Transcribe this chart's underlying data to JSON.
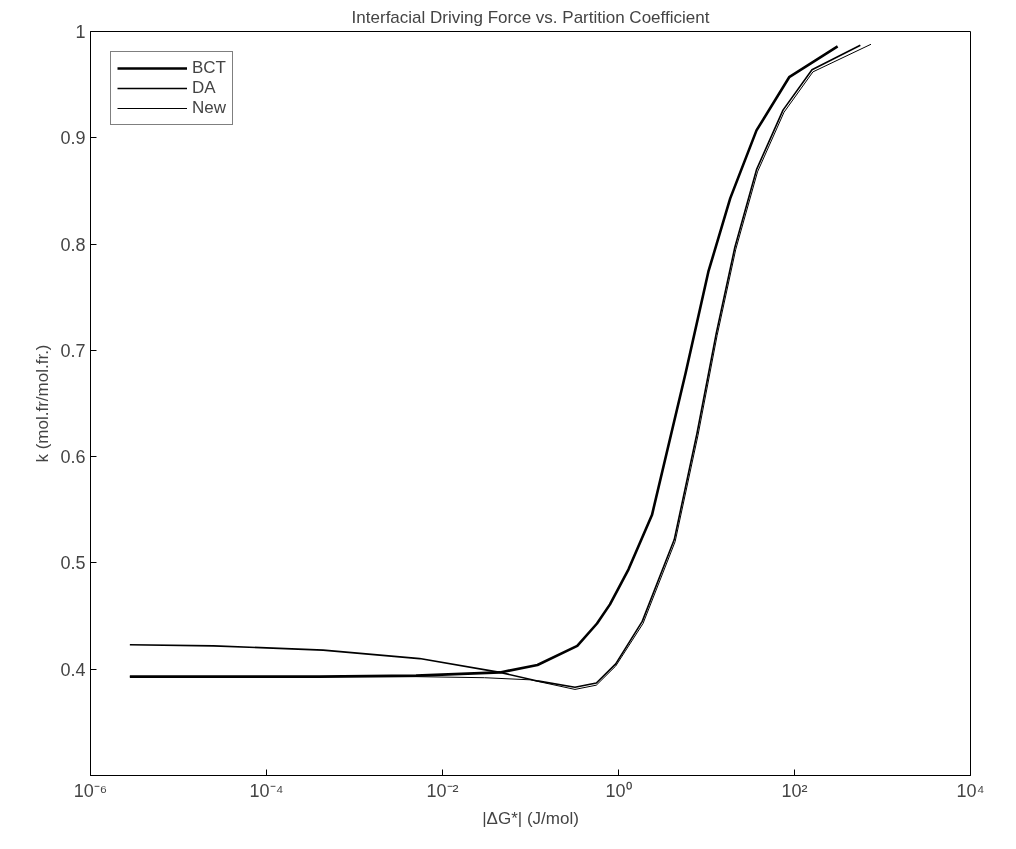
{
  "chart_data": {
    "type": "line",
    "title": "Interfacial Driving Force vs. Partition Coefficient",
    "xlabel": "|ΔG*| (J/mol)",
    "ylabel": "k (mol.fr/mol.fr.)",
    "log": "x",
    "xlim": [
      1e-06,
      10000.0
    ],
    "ylim": [
      0.3,
      1
    ],
    "xticks": [
      {
        "value": 1e-06,
        "label": "10⁻⁶"
      },
      {
        "value": 0.0001,
        "label": "10⁻⁴"
      },
      {
        "value": 0.01,
        "label": "10⁻²"
      },
      {
        "value": 1,
        "label": "10⁰"
      },
      {
        "value": 100,
        "label": "10²"
      },
      {
        "value": 10000,
        "label": "10⁴"
      }
    ],
    "yticks": [
      0.4,
      0.5,
      0.6,
      0.7,
      0.8,
      0.9,
      1
    ],
    "grid": false,
    "legend": "top left",
    "marker": "none",
    "line_style": "solid",
    "series": [
      {
        "name": "BCT",
        "color": "#000000",
        "x": [
          2.8e-06,
          2.5e-05,
          0.0004,
          0.005,
          0.045,
          0.12,
          0.34,
          0.57,
          0.8,
          1.3,
          2.4,
          5.8,
          10.5,
          18.6,
          37,
          87,
          309
        ],
        "values": [
          0.393,
          0.393,
          0.393,
          0.394,
          0.397,
          0.404,
          0.422,
          0.443,
          0.461,
          0.494,
          0.545,
          0.679,
          0.774,
          0.843,
          0.907,
          0.957,
          0.986
        ]
      },
      {
        "name": "DA",
        "color": "#000000",
        "x": [
          2.8e-06,
          2.5e-05,
          0.00044,
          0.0055,
          0.045,
          0.12,
          0.32,
          0.56,
          0.93,
          1.86,
          4.3,
          7.8,
          12.9,
          21,
          37,
          74,
          158,
          560
        ],
        "values": [
          0.423,
          0.422,
          0.418,
          0.41,
          0.397,
          0.389,
          0.383,
          0.387,
          0.405,
          0.445,
          0.522,
          0.622,
          0.716,
          0.797,
          0.87,
          0.926,
          0.964,
          0.987
        ]
      },
      {
        "name": "New",
        "color": "#000000",
        "x": [
          2.8e-06,
          2.5e-05,
          0.0004,
          0.005,
          0.03,
          0.1,
          0.32,
          0.56,
          0.93,
          1.9,
          4.4,
          8,
          13.2,
          21.5,
          38,
          76,
          162,
          740
        ],
        "values": [
          0.393,
          0.393,
          0.393,
          0.393,
          0.392,
          0.39,
          0.381,
          0.385,
          0.403,
          0.443,
          0.52,
          0.62,
          0.714,
          0.795,
          0.868,
          0.924,
          0.962,
          0.988
        ]
      }
    ]
  }
}
